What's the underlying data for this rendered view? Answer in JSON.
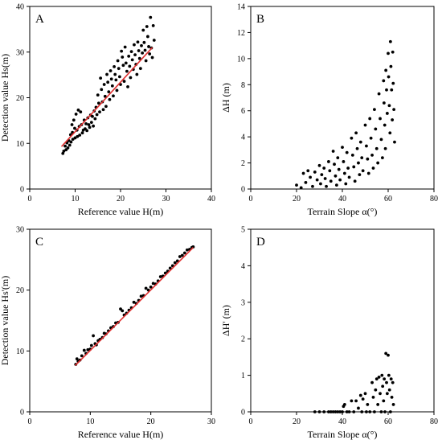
{
  "chart_data": [
    {
      "panel": "A",
      "type": "scatter",
      "xlabel": "Reference value H(m)",
      "ylabel": "Detection value Hs(m)",
      "xlim": [
        0,
        40
      ],
      "ylim": [
        0,
        40
      ],
      "xticks": [
        0,
        10,
        20,
        30,
        40
      ],
      "yticks": [
        0,
        10,
        20,
        30,
        40
      ],
      "fit_line": [
        [
          7,
          9.3
        ],
        [
          27,
          31
        ]
      ],
      "points": [
        [
          7.3,
          7.8
        ],
        [
          7.5,
          8.3
        ],
        [
          7.8,
          9.4
        ],
        [
          8.0,
          8.6
        ],
        [
          8.2,
          10.1
        ],
        [
          8.4,
          9.0
        ],
        [
          8.6,
          10.6
        ],
        [
          8.8,
          9.6
        ],
        [
          9.0,
          11.9
        ],
        [
          9.1,
          10.3
        ],
        [
          9.3,
          14.1
        ],
        [
          9.4,
          12.4
        ],
        [
          9.5,
          10.9
        ],
        [
          9.7,
          15.1
        ],
        [
          9.9,
          13.3
        ],
        [
          10.0,
          11.2
        ],
        [
          10.2,
          16.4
        ],
        [
          10.4,
          12.9
        ],
        [
          10.5,
          11.5
        ],
        [
          10.7,
          17.3
        ],
        [
          10.9,
          13.7
        ],
        [
          11.0,
          11.8
        ],
        [
          11.2,
          16.9
        ],
        [
          11.4,
          14.1
        ],
        [
          11.6,
          12.3
        ],
        [
          11.8,
          12.9
        ],
        [
          12.0,
          15.1
        ],
        [
          12.2,
          13.2
        ],
        [
          12.4,
          14.3
        ],
        [
          12.6,
          12.8
        ],
        [
          12.8,
          15.6
        ],
        [
          13.0,
          14.1
        ],
        [
          13.2,
          13.5
        ],
        [
          13.4,
          16.2
        ],
        [
          13.6,
          14.6
        ],
        [
          13.8,
          15.9
        ],
        [
          14.0,
          13.8
        ],
        [
          14.2,
          17.1
        ],
        [
          14.4,
          15.4
        ],
        [
          14.6,
          17.9
        ],
        [
          14.8,
          16.3
        ],
        [
          15.0,
          20.6
        ],
        [
          15.2,
          18.8
        ],
        [
          15.4,
          16.9
        ],
        [
          15.6,
          24.3
        ],
        [
          15.8,
          21.8
        ],
        [
          16.0,
          19.1
        ],
        [
          16.2,
          17.4
        ],
        [
          16.4,
          22.9
        ],
        [
          16.6,
          20.3
        ],
        [
          16.8,
          18.1
        ],
        [
          17.0,
          25.1
        ],
        [
          17.2,
          23.4
        ],
        [
          17.4,
          21.3
        ],
        [
          17.6,
          19.6
        ],
        [
          17.8,
          25.9
        ],
        [
          18.0,
          24.1
        ],
        [
          18.2,
          22.6
        ],
        [
          18.4,
          20.4
        ],
        [
          18.6,
          26.8
        ],
        [
          18.8,
          25.1
        ],
        [
          19.0,
          23.9
        ],
        [
          19.2,
          21.6
        ],
        [
          19.4,
          28.1
        ],
        [
          19.6,
          26.4
        ],
        [
          19.8,
          24.6
        ],
        [
          20.0,
          22.9
        ],
        [
          20.2,
          30.2
        ],
        [
          20.4,
          28.9
        ],
        [
          20.6,
          27.1
        ],
        [
          20.8,
          23.6
        ],
        [
          21.0,
          31.1
        ],
        [
          21.2,
          27.6
        ],
        [
          21.4,
          25.8
        ],
        [
          21.6,
          22.4
        ],
        [
          21.8,
          29.1
        ],
        [
          22.0,
          26.9
        ],
        [
          22.2,
          24.4
        ],
        [
          22.4,
          30.1
        ],
        [
          22.6,
          28.3
        ],
        [
          22.8,
          26.2
        ],
        [
          23.0,
          31.6
        ],
        [
          23.2,
          29.4
        ],
        [
          23.4,
          27.3
        ],
        [
          23.6,
          25.1
        ],
        [
          23.8,
          32.2
        ],
        [
          24.0,
          30.3
        ],
        [
          24.2,
          28.6
        ],
        [
          24.4,
          26.4
        ],
        [
          24.6,
          31.4
        ],
        [
          24.8,
          29.8
        ],
        [
          25.0,
          34.8
        ],
        [
          25.2,
          32.1
        ],
        [
          25.4,
          30.4
        ],
        [
          25.6,
          28.1
        ],
        [
          25.8,
          35.6
        ],
        [
          26.0,
          33.4
        ],
        [
          26.2,
          31.2
        ],
        [
          26.4,
          29.6
        ],
        [
          26.6,
          37.6
        ],
        [
          26.8,
          30.9
        ],
        [
          27.0,
          28.8
        ],
        [
          27.2,
          35.8
        ],
        [
          27.4,
          32.6
        ]
      ]
    },
    {
      "panel": "B",
      "type": "scatter",
      "xlabel": "Terrain Slope α(°)",
      "ylabel": "ΔH (m)",
      "xlim": [
        0,
        80
      ],
      "ylim": [
        0,
        14
      ],
      "xticks": [
        0,
        20,
        40,
        60,
        80
      ],
      "yticks": [
        0,
        2,
        4,
        6,
        8,
        10,
        12,
        14
      ],
      "points": [
        [
          20,
          0.3
        ],
        [
          22,
          0.1
        ],
        [
          23,
          1.2
        ],
        [
          24,
          0.5
        ],
        [
          25,
          1.4
        ],
        [
          26,
          0.9
        ],
        [
          27,
          0.2
        ],
        [
          28,
          1.3
        ],
        [
          29,
          0.7
        ],
        [
          30,
          1.8
        ],
        [
          30.5,
          0.4
        ],
        [
          31,
          1.1
        ],
        [
          32,
          1.6
        ],
        [
          32.5,
          0.8
        ],
        [
          33,
          0.2
        ],
        [
          34,
          2.1
        ],
        [
          34.5,
          1.4
        ],
        [
          35,
          0.6
        ],
        [
          36,
          2.9
        ],
        [
          36.5,
          1.9
        ],
        [
          37,
          1.0
        ],
        [
          37.5,
          0.3
        ],
        [
          38,
          2.4
        ],
        [
          38.5,
          1.5
        ],
        [
          39,
          0.7
        ],
        [
          40,
          3.2
        ],
        [
          40.5,
          2.1
        ],
        [
          41,
          1.2
        ],
        [
          41.5,
          0.4
        ],
        [
          42,
          2.8
        ],
        [
          42.5,
          1.6
        ],
        [
          43,
          0.9
        ],
        [
          44,
          3.9
        ],
        [
          44.5,
          2.6
        ],
        [
          45,
          1.7
        ],
        [
          45.5,
          0.6
        ],
        [
          46,
          4.3
        ],
        [
          46.5,
          3.1
        ],
        [
          47,
          2.0
        ],
        [
          47.5,
          1.1
        ],
        [
          48,
          3.6
        ],
        [
          48.5,
          2.4
        ],
        [
          49,
          1.4
        ],
        [
          50,
          4.9
        ],
        [
          50.5,
          3.3
        ],
        [
          51,
          2.3
        ],
        [
          51.5,
          1.2
        ],
        [
          52,
          5.4
        ],
        [
          52.5,
          3.9
        ],
        [
          53,
          2.6
        ],
        [
          53.5,
          1.6
        ],
        [
          54,
          6.1
        ],
        [
          54.5,
          4.6
        ],
        [
          55,
          3.1
        ],
        [
          55.5,
          2.0
        ],
        [
          56,
          7.3
        ],
        [
          56.5,
          5.4
        ],
        [
          57,
          3.8
        ],
        [
          57.5,
          2.4
        ],
        [
          58,
          8.3
        ],
        [
          58.2,
          6.6
        ],
        [
          58.5,
          4.9
        ],
        [
          58.8,
          3.1
        ],
        [
          59,
          9.1
        ],
        [
          59.3,
          7.6
        ],
        [
          59.6,
          5.8
        ],
        [
          60,
          10.4
        ],
        [
          60.2,
          8.6
        ],
        [
          60.5,
          6.4
        ],
        [
          60.8,
          4.3
        ],
        [
          61,
          11.3
        ],
        [
          61.2,
          9.4
        ],
        [
          61.5,
          7.6
        ],
        [
          61.8,
          5.3
        ],
        [
          62,
          10.5
        ],
        [
          62.2,
          8.1
        ],
        [
          62.5,
          6.1
        ],
        [
          62.8,
          3.6
        ]
      ]
    },
    {
      "panel": "C",
      "type": "scatter",
      "xlabel": "Reference value H(m)",
      "ylabel": "Detection value Hs'(m)",
      "xlim": [
        0,
        30
      ],
      "ylim": [
        0,
        30
      ],
      "xticks": [
        0,
        10,
        20,
        30
      ],
      "yticks": [
        0,
        10,
        20,
        30
      ],
      "fit_line": [
        [
          7.5,
          7.6
        ],
        [
          27,
          27
        ]
      ],
      "points": [
        [
          7.6,
          7.8
        ],
        [
          7.8,
          8.7
        ],
        [
          8.0,
          8.3
        ],
        [
          8.3,
          8.5
        ],
        [
          8.6,
          9.2
        ],
        [
          9.0,
          10.1
        ],
        [
          9.3,
          9.6
        ],
        [
          9.6,
          10.2
        ],
        [
          10.0,
          10.3
        ],
        [
          10.2,
          10.9
        ],
        [
          10.5,
          12.5
        ],
        [
          10.8,
          11.2
        ],
        [
          11.0,
          11.0
        ],
        [
          11.3,
          11.7
        ],
        [
          11.6,
          11.9
        ],
        [
          12.0,
          12.2
        ],
        [
          12.3,
          12.9
        ],
        [
          12.6,
          12.8
        ],
        [
          13.0,
          13.3
        ],
        [
          13.4,
          13.8
        ],
        [
          13.8,
          14.0
        ],
        [
          14.2,
          14.6
        ],
        [
          14.6,
          14.7
        ],
        [
          15.0,
          16.9
        ],
        [
          15.3,
          16.6
        ],
        [
          15.6,
          15.9
        ],
        [
          16.0,
          16.2
        ],
        [
          16.4,
          16.7
        ],
        [
          16.8,
          17.1
        ],
        [
          17.2,
          18.0
        ],
        [
          17.6,
          17.8
        ],
        [
          18.0,
          18.3
        ],
        [
          18.4,
          19.0
        ],
        [
          18.8,
          19.1
        ],
        [
          19.2,
          20.3
        ],
        [
          19.6,
          20.0
        ],
        [
          20.0,
          20.5
        ],
        [
          20.4,
          21.1
        ],
        [
          20.8,
          21.0
        ],
        [
          21.2,
          21.5
        ],
        [
          21.6,
          22.2
        ],
        [
          22.0,
          22.3
        ],
        [
          22.4,
          22.8
        ],
        [
          22.8,
          23.1
        ],
        [
          23.2,
          23.6
        ],
        [
          23.6,
          24.0
        ],
        [
          24.0,
          24.5
        ],
        [
          24.4,
          24.8
        ],
        [
          24.8,
          25.5
        ],
        [
          25.2,
          25.7
        ],
        [
          25.6,
          26.1
        ],
        [
          26.0,
          26.6
        ],
        [
          26.4,
          26.7
        ],
        [
          26.8,
          27.0
        ],
        [
          27.0,
          27.1
        ]
      ]
    },
    {
      "panel": "D",
      "type": "scatter",
      "xlabel": "Terrain Slope α(°)",
      "ylabel": "ΔH' (m)",
      "xlim": [
        0,
        80
      ],
      "ylim": [
        0,
        5
      ],
      "xticks": [
        0,
        20,
        40,
        60,
        80
      ],
      "yticks": [
        0,
        1,
        2,
        3,
        4,
        5
      ],
      "points": [
        [
          28,
          0
        ],
        [
          30,
          0
        ],
        [
          32,
          0
        ],
        [
          34,
          0
        ],
        [
          35,
          0
        ],
        [
          36,
          0
        ],
        [
          37,
          0
        ],
        [
          38,
          0
        ],
        [
          39,
          0
        ],
        [
          40,
          0
        ],
        [
          40.5,
          0.15
        ],
        [
          41,
          0.2
        ],
        [
          42,
          0
        ],
        [
          43,
          0
        ],
        [
          44,
          0.3
        ],
        [
          45,
          0
        ],
        [
          46,
          0.3
        ],
        [
          47,
          0.1
        ],
        [
          48,
          0.45
        ],
        [
          48.5,
          0
        ],
        [
          49,
          0.35
        ],
        [
          50,
          0.5
        ],
        [
          50.5,
          0
        ],
        [
          51,
          0.2
        ],
        [
          52,
          0
        ],
        [
          53,
          0.8
        ],
        [
          53.5,
          0.4
        ],
        [
          54,
          0
        ],
        [
          54.5,
          0.6
        ],
        [
          55,
          0.9
        ],
        [
          55.5,
          0.2
        ],
        [
          56,
          0.95
        ],
        [
          56.5,
          0.5
        ],
        [
          57,
          0
        ],
        [
          57.3,
          1.0
        ],
        [
          57.6,
          0.7
        ],
        [
          58,
          0.3
        ],
        [
          58.3,
          0.9
        ],
        [
          58.6,
          0
        ],
        [
          59,
          1.6
        ],
        [
          59.3,
          0.8
        ],
        [
          59.6,
          0.5
        ],
        [
          60,
          1.55
        ],
        [
          60.3,
          1.0
        ],
        [
          60.6,
          0.6
        ],
        [
          61,
          0
        ],
        [
          61.3,
          0.9
        ],
        [
          61.6,
          0.4
        ],
        [
          62,
          0.8
        ],
        [
          62.3,
          0.2
        ]
      ]
    }
  ]
}
